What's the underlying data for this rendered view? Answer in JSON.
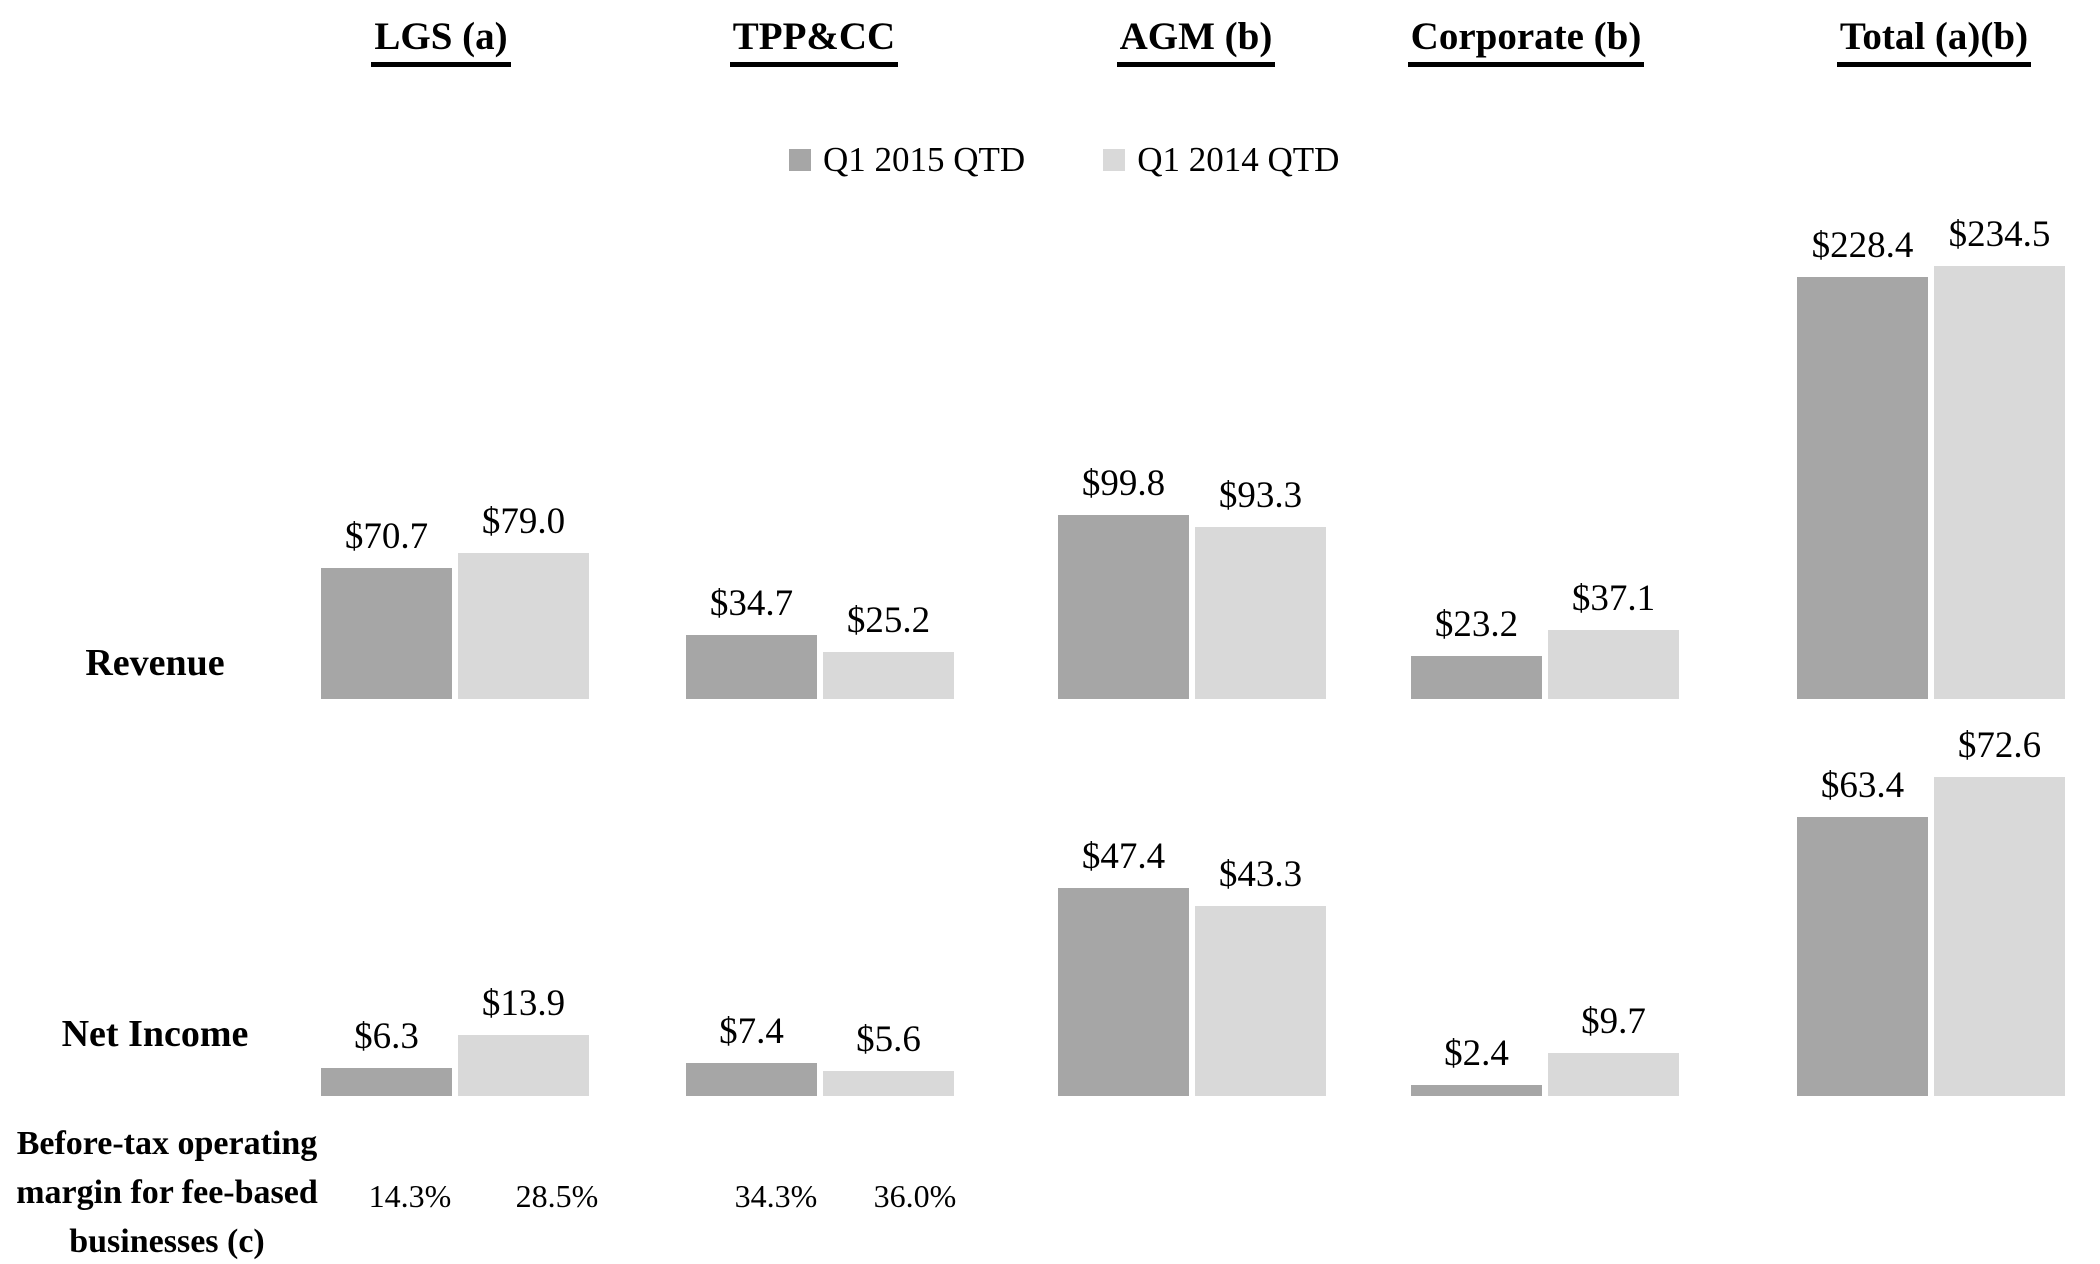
{
  "colors": {
    "q1_2015": "#a6a6a6",
    "q1_2014": "#d9d9d9",
    "text": "#000000",
    "background": "#ffffff"
  },
  "legend": [
    {
      "name": "Q1 2015 QTD",
      "color": "#a6a6a6"
    },
    {
      "name": "Q1 2014 QTD",
      "color": "#d9d9d9"
    }
  ],
  "chart_data": {
    "type": "bar",
    "title": "",
    "categories": [
      "LGS (a)",
      "TPP&CC",
      "AGM (b)",
      "Corporate (b)",
      "Total (a)(b)"
    ],
    "legend_position": "top-center",
    "grid": false,
    "value_prefix": "$",
    "rows": [
      {
        "label": "Revenue",
        "series": [
          {
            "name": "Q1 2015 QTD",
            "color": "#a6a6a6",
            "values": [
              70.7,
              34.7,
              99.8,
              23.2,
              228.4
            ]
          },
          {
            "name": "Q1 2014 QTD",
            "color": "#d9d9d9",
            "values": [
              79.0,
              25.2,
              93.3,
              37.1,
              234.5
            ]
          }
        ]
      },
      {
        "label": "Net Income",
        "series": [
          {
            "name": "Q1 2015 QTD",
            "color": "#a6a6a6",
            "values": [
              6.3,
              7.4,
              47.4,
              2.4,
              63.4
            ]
          },
          {
            "name": "Q1 2014 QTD",
            "color": "#d9d9d9",
            "values": [
              13.9,
              5.6,
              43.3,
              9.7,
              72.6
            ]
          }
        ]
      }
    ],
    "margin_row": {
      "label_lines": [
        "Before-tax operating",
        "margin for fee-based",
        "businesses (c)"
      ],
      "values": [
        "14.3%",
        "28.5%",
        "34.3%",
        "36.0%"
      ],
      "value_categories": [
        "LGS (a) Q1 2015",
        "LGS (a) Q1 2014",
        "TPP&CC Q1 2015",
        "TPP&CC Q1 2014"
      ]
    }
  }
}
